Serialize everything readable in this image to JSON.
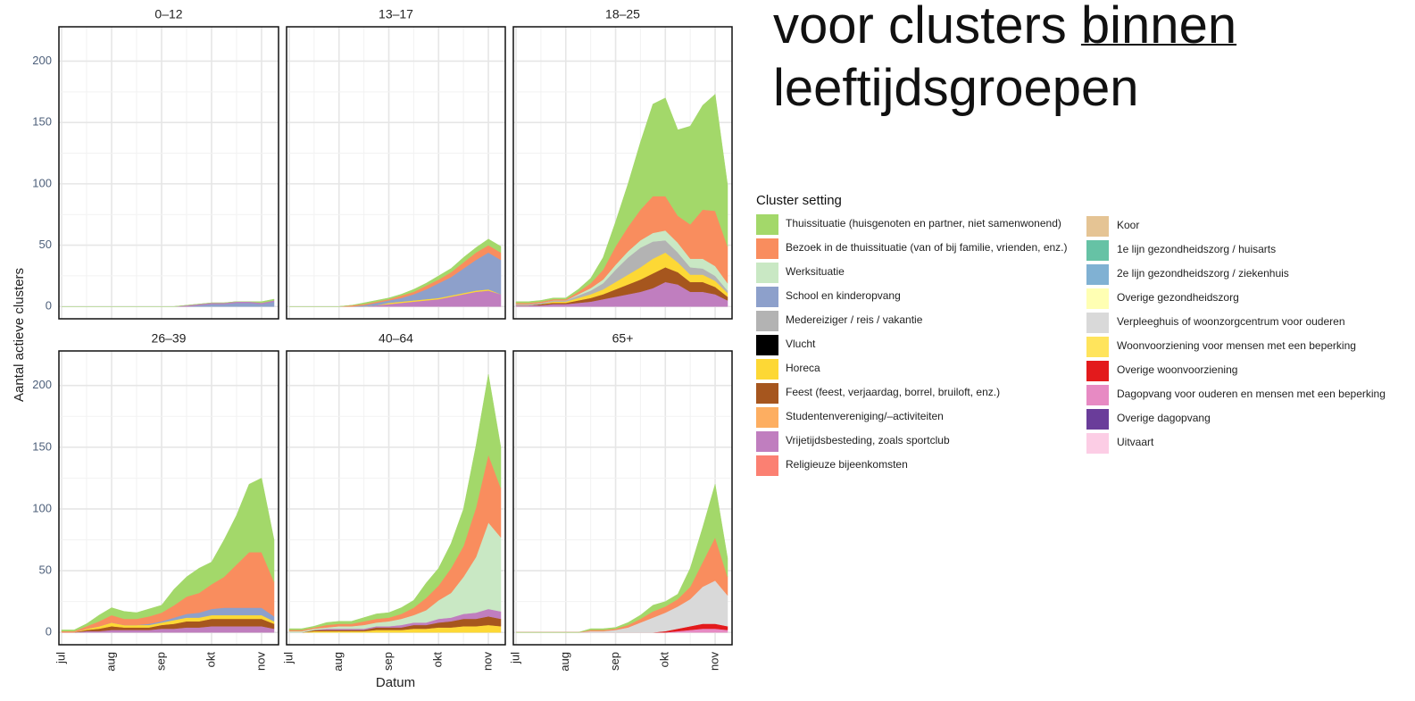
{
  "heading": [
    "voor clusters",
    "binnen",
    "leeftijdsgroepen"
  ],
  "y_label": "Aantal actieve clusters",
  "x_label": "Datum",
  "categories": [
    "jul",
    null,
    null,
    null,
    "aug",
    null,
    null,
    null,
    "sep",
    null,
    null,
    null,
    "okt",
    null,
    null,
    null,
    "nov",
    null
  ],
  "legend": {
    "title": "Cluster setting",
    "entries": [
      {
        "name": "Thuissituatie (huisgenoten en partner, niet samenwonend)",
        "color": "#a3d86a"
      },
      {
        "name": "Bezoek in de thuissituatie (van of bij familie, vrienden, enz.)",
        "color": "#f98d5e"
      },
      {
        "name": "Werksituatie",
        "color": "#c9e8c4"
      },
      {
        "name": "School en kinderopvang",
        "color": "#8da0cb"
      },
      {
        "name": "Medereiziger / reis / vakantie",
        "color": "#b3b3b3"
      },
      {
        "name": "Vlucht",
        "color": "#000000"
      },
      {
        "name": "Horeca",
        "color": "#fdd835"
      },
      {
        "name": "Feest (feest, verjaardag, borrel, bruiloft, enz.)",
        "color": "#a6561e"
      },
      {
        "name": "Studentenvereniging/–activiteiten",
        "color": "#fdae61"
      },
      {
        "name": "Vrijetijdsbesteding, zoals sportclub",
        "color": "#c07ebf"
      },
      {
        "name": "Religieuze bijeenkomsten",
        "color": "#fb8072"
      },
      {
        "name": "Koor",
        "color": "#e5c494"
      },
      {
        "name": "1e lijn gezondheidszorg / huisarts",
        "color": "#66c2a5"
      },
      {
        "name": "2e lijn gezondheidszorg / ziekenhuis",
        "color": "#80b1d3"
      },
      {
        "name": "Overige gezondheidszorg",
        "color": "#ffffb3"
      },
      {
        "name": "Verpleeghuis of woonzorgcentrum voor ouderen",
        "color": "#d9d9d9"
      },
      {
        "name": "Woonvoorziening voor mensen met een beperking",
        "color": "#ffe45c"
      },
      {
        "name": "Overige woonvoorziening",
        "color": "#e31a1c"
      },
      {
        "name": "Dagopvang voor ouderen en mensen met een beperking",
        "color": "#e78ac3"
      },
      {
        "name": "Overige dagopvang",
        "color": "#6a3d9a"
      },
      {
        "name": "Uitvaart",
        "color": "#fccde5"
      }
    ]
  },
  "chart_data": [
    {
      "type": "area",
      "title": "0–12",
      "ylim": [
        -10,
        228
      ],
      "yticks": [
        0,
        50,
        100,
        150,
        200
      ],
      "grid": true,
      "series": [
        {
          "name": "School en kinderopvang",
          "color": "#8da0cb",
          "values": [
            0,
            0,
            0,
            0,
            0,
            0,
            0,
            0,
            0,
            0,
            0,
            1,
            2,
            2,
            3,
            3,
            2,
            4
          ]
        },
        {
          "name": "Vrijetijdsbesteding, zoals sportclub",
          "color": "#c07ebf",
          "values": [
            0,
            0,
            0,
            0,
            0,
            0,
            0,
            0,
            0,
            0,
            1,
            1,
            1,
            1,
            1,
            1,
            1,
            1
          ]
        },
        {
          "name": "Thuissituatie (huisgenoten en partner, niet samenwonend)",
          "color": "#a3d86a",
          "values": [
            0,
            0,
            0,
            0,
            0,
            0,
            0,
            0,
            0,
            0,
            0,
            0,
            0,
            0,
            0,
            0,
            1,
            1
          ]
        }
      ]
    },
    {
      "type": "area",
      "title": "13–17",
      "ylim": [
        -10,
        228
      ],
      "yticks": [
        0,
        50,
        100,
        150,
        200
      ],
      "grid": true,
      "series": [
        {
          "name": "Vrijetijdsbesteding, zoals sportclub",
          "color": "#c07ebf",
          "values": [
            0,
            0,
            0,
            0,
            0,
            0,
            0,
            1,
            2,
            3,
            4,
            5,
            6,
            8,
            10,
            12,
            13,
            10
          ]
        },
        {
          "name": "Horeca",
          "color": "#fdd835",
          "values": [
            0,
            0,
            0,
            0,
            0,
            0,
            0,
            0,
            1,
            1,
            1,
            1,
            1,
            1,
            1,
            1,
            1,
            0
          ]
        },
        {
          "name": "School en kinderopvang",
          "color": "#8da0cb",
          "values": [
            0,
            0,
            0,
            0,
            0,
            0,
            1,
            2,
            2,
            3,
            5,
            8,
            12,
            15,
            20,
            25,
            30,
            28
          ]
        },
        {
          "name": "Bezoek in de thuissituatie (van of bij familie, vrienden, enz.)",
          "color": "#f98d5e",
          "values": [
            0,
            0,
            0,
            0,
            0,
            1,
            1,
            1,
            1,
            2,
            2,
            3,
            3,
            4,
            5,
            6,
            6,
            6
          ]
        },
        {
          "name": "Thuissituatie (huisgenoten en partner, niet samenwonend)",
          "color": "#a3d86a",
          "values": [
            0,
            0,
            0,
            0,
            0,
            0,
            1,
            1,
            1,
            1,
            2,
            2,
            3,
            3,
            4,
            4,
            5,
            5
          ]
        }
      ]
    },
    {
      "type": "area",
      "title": "18–25",
      "ylim": [
        -10,
        228
      ],
      "yticks": [
        0,
        50,
        100,
        150,
        200
      ],
      "grid": true,
      "series": [
        {
          "name": "Vrijetijdsbesteding, zoals sportclub",
          "color": "#c07ebf",
          "values": [
            1,
            1,
            1,
            2,
            2,
            3,
            4,
            6,
            8,
            10,
            12,
            15,
            20,
            18,
            12,
            12,
            10,
            5
          ]
        },
        {
          "name": "Feest (feest, verjaardag, borrel, bruiloft, enz.)",
          "color": "#a6561e",
          "values": [
            0,
            0,
            1,
            1,
            1,
            2,
            3,
            4,
            6,
            8,
            10,
            12,
            12,
            10,
            8,
            8,
            6,
            3
          ]
        },
        {
          "name": "Horeca",
          "color": "#fdd835",
          "values": [
            0,
            0,
            0,
            1,
            1,
            2,
            3,
            4,
            6,
            8,
            10,
            12,
            12,
            8,
            6,
            6,
            5,
            3
          ]
        },
        {
          "name": "Medereiziger / reis / vakantie",
          "color": "#b3b3b3",
          "values": [
            1,
            1,
            1,
            1,
            1,
            2,
            3,
            5,
            10,
            14,
            16,
            14,
            10,
            8,
            6,
            5,
            4,
            2
          ]
        },
        {
          "name": "Werksituatie",
          "color": "#c9e8c4",
          "values": [
            0,
            0,
            0,
            0,
            0,
            1,
            2,
            3,
            4,
            5,
            6,
            7,
            8,
            8,
            7,
            8,
            8,
            6
          ]
        },
        {
          "name": "Bezoek in de thuissituatie (van of bij familie, vrienden, enz.)",
          "color": "#f98d5e",
          "values": [
            1,
            1,
            1,
            1,
            1,
            2,
            4,
            8,
            15,
            20,
            25,
            30,
            28,
            22,
            28,
            40,
            45,
            30
          ]
        },
        {
          "name": "Thuissituatie (huisgenoten en partner, niet samenwonend)",
          "color": "#a3d86a",
          "values": [
            1,
            1,
            1,
            1,
            1,
            2,
            4,
            10,
            20,
            35,
            55,
            75,
            80,
            70,
            80,
            85,
            95,
            50
          ]
        }
      ]
    },
    {
      "type": "area",
      "title": "26–39",
      "ylim": [
        -10,
        228
      ],
      "yticks": [
        0,
        50,
        100,
        150,
        200
      ],
      "grid": true,
      "series": [
        {
          "name": "Vrijetijdsbesteding, zoals sportclub",
          "color": "#c07ebf",
          "values": [
            0,
            0,
            1,
            1,
            2,
            2,
            2,
            2,
            3,
            3,
            4,
            4,
            5,
            5,
            5,
            5,
            5,
            3
          ]
        },
        {
          "name": "Feest (feest, verjaardag, borrel, bruiloft, enz.)",
          "color": "#a6561e",
          "values": [
            0,
            0,
            1,
            2,
            3,
            2,
            2,
            2,
            3,
            4,
            5,
            5,
            6,
            6,
            6,
            6,
            6,
            4
          ]
        },
        {
          "name": "Horeca",
          "color": "#fdd835",
          "values": [
            0,
            0,
            1,
            2,
            3,
            2,
            2,
            2,
            2,
            3,
            3,
            3,
            3,
            3,
            3,
            3,
            3,
            2
          ]
        },
        {
          "name": "School en kinderopvang",
          "color": "#8da0cb",
          "values": [
            0,
            0,
            0,
            0,
            0,
            0,
            0,
            1,
            1,
            2,
            3,
            4,
            5,
            6,
            6,
            6,
            6,
            4
          ]
        },
        {
          "name": "Bezoek in de thuissituatie (van of bij familie, vrienden, enz.)",
          "color": "#f98d5e",
          "values": [
            1,
            1,
            2,
            4,
            6,
            5,
            5,
            6,
            7,
            10,
            14,
            16,
            20,
            25,
            35,
            45,
            45,
            28
          ]
        },
        {
          "name": "Thuissituatie (huisgenoten en partner, niet samenwonend)",
          "color": "#a3d86a",
          "values": [
            1,
            1,
            2,
            5,
            6,
            6,
            5,
            6,
            6,
            13,
            16,
            20,
            18,
            30,
            40,
            55,
            60,
            34
          ]
        }
      ]
    },
    {
      "type": "area",
      "title": "40–64",
      "ylim": [
        -10,
        228
      ],
      "yticks": [
        0,
        50,
        100,
        150,
        200
      ],
      "grid": true,
      "series": [
        {
          "name": "Horeca",
          "color": "#fdd835",
          "values": [
            0,
            0,
            1,
            1,
            1,
            1,
            1,
            2,
            2,
            2,
            3,
            3,
            4,
            4,
            5,
            5,
            6,
            5
          ]
        },
        {
          "name": "Feest (feest, verjaardag, borrel, bruiloft, enz.)",
          "color": "#a6561e",
          "values": [
            0,
            0,
            1,
            1,
            1,
            1,
            1,
            2,
            2,
            2,
            3,
            3,
            4,
            5,
            6,
            6,
            7,
            6
          ]
        },
        {
          "name": "Vrijetijdsbesteding, zoals sportclub",
          "color": "#c07ebf",
          "values": [
            0,
            0,
            0,
            1,
            1,
            1,
            1,
            1,
            1,
            2,
            2,
            2,
            3,
            3,
            4,
            5,
            6,
            6
          ]
        },
        {
          "name": "Werksituatie",
          "color": "#c9e8c4",
          "values": [
            1,
            1,
            1,
            1,
            2,
            2,
            3,
            3,
            4,
            5,
            6,
            10,
            15,
            20,
            30,
            45,
            70,
            60
          ]
        },
        {
          "name": "Bezoek in de thuissituatie (van of bij familie, vrienden, enz.)",
          "color": "#f98d5e",
          "values": [
            1,
            1,
            1,
            2,
            2,
            2,
            3,
            3,
            3,
            4,
            6,
            10,
            12,
            20,
            25,
            40,
            55,
            40
          ]
        },
        {
          "name": "Thuissituatie (huisgenoten en partner, niet samenwonend)",
          "color": "#a3d86a",
          "values": [
            1,
            1,
            1,
            2,
            2,
            2,
            3,
            4,
            4,
            5,
            6,
            12,
            14,
            20,
            30,
            50,
            65,
            33
          ]
        }
      ]
    },
    {
      "type": "area",
      "title": "65+",
      "ylim": [
        -10,
        228
      ],
      "yticks": [
        0,
        50,
        100,
        150,
        200
      ],
      "grid": true,
      "series": [
        {
          "name": "Dagopvang voor ouderen en mensen met een beperking",
          "color": "#e78ac3",
          "values": [
            0,
            0,
            0,
            0,
            0,
            0,
            0,
            0,
            0,
            0,
            0,
            0,
            0,
            1,
            2,
            3,
            3,
            2
          ]
        },
        {
          "name": "Overige woonvoorziening",
          "color": "#e31a1c",
          "values": [
            0,
            0,
            0,
            0,
            0,
            0,
            0,
            0,
            0,
            0,
            0,
            0,
            1,
            2,
            3,
            4,
            4,
            3
          ]
        },
        {
          "name": "Verpleeghuis of woonzorgcentrum voor ouderen",
          "color": "#d9d9d9",
          "values": [
            0,
            0,
            0,
            0,
            0,
            0,
            1,
            1,
            2,
            4,
            8,
            12,
            15,
            18,
            22,
            30,
            35,
            25
          ]
        },
        {
          "name": "Bezoek in de thuissituatie (van of bij familie, vrienden, enz.)",
          "color": "#f98d5e",
          "values": [
            0,
            0,
            0,
            0,
            0,
            0,
            1,
            1,
            1,
            2,
            3,
            5,
            5,
            6,
            10,
            20,
            35,
            15
          ]
        },
        {
          "name": "Thuissituatie (huisgenoten en partner, niet samenwonend)",
          "color": "#a3d86a",
          "values": [
            0,
            0,
            0,
            0,
            0,
            0,
            1,
            1,
            1,
            2,
            3,
            5,
            4,
            4,
            15,
            28,
            43,
            15
          ]
        }
      ]
    }
  ]
}
